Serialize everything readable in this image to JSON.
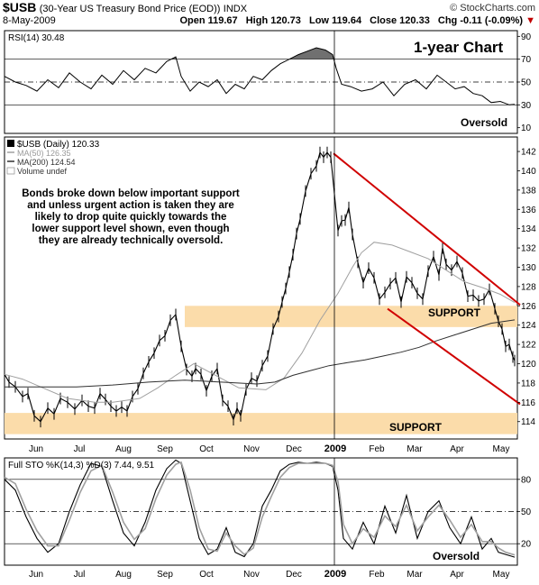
{
  "header": {
    "symbol": "$USB",
    "description": "(30-Year US Treasury Bond Price (EOD))",
    "exchange": "INDX",
    "credit": "© StockCharts.com",
    "date": "8-May-2009",
    "open_label": "Open",
    "open": "119.67",
    "high_label": "High",
    "high": "120.73",
    "low_label": "Low",
    "low": "119.64",
    "close_label": "Close",
    "close": "120.33",
    "chg_label": "Chg",
    "chg": "-0.11 (-0.09%)",
    "chg_arrow": "▼"
  },
  "rsi_panel": {
    "legend": "RSI(14) 30.48",
    "chart_title": "1-year Chart",
    "annotation": "Oversold",
    "ticks": [
      "90",
      "70",
      "50",
      "30",
      "10"
    ]
  },
  "price_panel": {
    "legend_symbol": "$USB (Daily) 120.33",
    "legend_ma50": "MA(50) 126.35",
    "legend_ma200": "MA(200) 124.54",
    "legend_volume": "Volume undef",
    "comment_lines": [
      "Bonds broke down below important support",
      "and unless urgent action is taken they are",
      "likely to drop quite quickly towards the",
      "lower support level shown, even though",
      "they are already technically oversold."
    ],
    "support_upper_label": "SUPPORT",
    "support_lower_label": "SUPPORT"
  },
  "sto_panel": {
    "legend": "Full STO %K(14,3) %D(3) 7.44, 9.51",
    "annotation": "Oversold",
    "ticks": [
      "80",
      "50",
      "20"
    ]
  },
  "colors": {
    "price": "#000000",
    "ma50": "#a0a0a0",
    "ma200": "#303030",
    "channel": "#d00000",
    "support_band": "#fbdcaa",
    "rsi_fill": "#707070",
    "sto_d": "#a0a0a0"
  },
  "chart_data": {
    "type": "line",
    "title": "$USB (30-Year US Treasury Bond Price (EOD)) INDX",
    "x_labels": [
      "Jun",
      "Jul",
      "Aug",
      "Sep",
      "Oct",
      "Nov",
      "Dec",
      "2009",
      "Feb",
      "Mar",
      "Apr",
      "May"
    ],
    "price_axis": {
      "ticks": [
        114,
        116,
        118,
        120,
        122,
        124,
        126,
        128,
        130,
        132,
        134,
        136,
        138,
        140,
        142
      ],
      "ylim": [
        112.2,
        143.5
      ]
    },
    "rsi_axis": {
      "ticks": [
        10,
        30,
        50,
        70,
        90
      ],
      "ylim": [
        5,
        95
      ]
    },
    "sto_axis": {
      "ticks": [
        20,
        50,
        80
      ],
      "ylim": [
        0,
        100
      ]
    },
    "series": [
      {
        "name": "$USB (Daily)",
        "panel": "price",
        "x": [
          0,
          5,
          12,
          20,
          26,
          33,
          40,
          48,
          55,
          62,
          70,
          78,
          86,
          93,
          100,
          106,
          112,
          118,
          124,
          130,
          136,
          142,
          148,
          154,
          160,
          166,
          172,
          178,
          184,
          190,
          196,
          202,
          208,
          212,
          218,
          224,
          230,
          236,
          242,
          248,
          254,
          258,
          262,
          268,
          274,
          280,
          286,
          292,
          298,
          304,
          308,
          312,
          316,
          320,
          324,
          328,
          334,
          340,
          346,
          350,
          354,
          358,
          362,
          366,
          370,
          374,
          378,
          382,
          386,
          392,
          398,
          404,
          410,
          416,
          422,
          428,
          434,
          440,
          446,
          452,
          458,
          464,
          470,
          476,
          482,
          486,
          490,
          496,
          502,
          508,
          514,
          520,
          526,
          532,
          538,
          544,
          548,
          552,
          556,
          560,
          564,
          566
        ],
        "values": [
          118.9,
          118.1,
          117.6,
          116.6,
          116.9,
          114.6,
          114.0,
          115.4,
          114.8,
          116.4,
          116.0,
          115.3,
          116.2,
          115.6,
          115.4,
          116.9,
          116.3,
          115.6,
          115.1,
          115.5,
          115.1,
          116.6,
          117.4,
          119.0,
          120.2,
          121.1,
          122.4,
          122.9,
          124.5,
          125.1,
          121.8,
          119.4,
          118.7,
          119.5,
          118.9,
          117.2,
          118.7,
          119.5,
          116.2,
          115.6,
          114.2,
          115.4,
          114.6,
          117.3,
          118.5,
          118.2,
          119.8,
          120.8,
          123.6,
          124.9,
          126.4,
          127.8,
          129.5,
          131.3,
          133.5,
          135.0,
          137.9,
          139.7,
          140.5,
          141.9,
          141.4,
          141.9,
          141.4,
          137.6,
          133.8,
          134.8,
          134.9,
          136.2,
          133.4,
          130.5,
          128.4,
          129.9,
          128.9,
          126.7,
          127.4,
          128.3,
          128.9,
          126.4,
          129.0,
          128.4,
          127.3,
          126.7,
          129.6,
          131.1,
          129.2,
          132.0,
          130.3,
          129.7,
          130.6,
          129.4,
          127.0,
          127.1,
          126.5,
          126.7,
          127.7,
          125.7,
          124.4,
          123.6,
          121.8,
          122.0,
          120.7,
          120.33
        ]
      },
      {
        "name": "MA(50)",
        "panel": "price",
        "x": [
          0,
          20,
          40,
          70,
          100,
          120,
          150,
          170,
          190,
          210,
          230,
          260,
          290,
          310,
          330,
          350,
          370,
          386,
          396,
          410,
          430,
          450,
          470,
          490,
          510,
          530,
          550,
          566
        ],
        "values": [
          118.9,
          118.4,
          117.6,
          116.4,
          116.0,
          116.0,
          116.4,
          117.5,
          118.8,
          120.0,
          119.0,
          117.5,
          117.3,
          118.5,
          121.1,
          124.5,
          127.3,
          130.0,
          131.5,
          132.6,
          132.3,
          131.6,
          130.9,
          129.7,
          128.5,
          127.9,
          127.2,
          126.35
        ]
      },
      {
        "name": "MA(200)",
        "panel": "price",
        "x": [
          0,
          40,
          80,
          120,
          160,
          200,
          240,
          280,
          300,
          320,
          340,
          360,
          380,
          400,
          420,
          440,
          460,
          480,
          500,
          520,
          540,
          566
        ],
        "values": [
          117.6,
          117.6,
          117.6,
          117.8,
          118.1,
          118.3,
          118.1,
          117.9,
          118.1,
          118.8,
          119.3,
          119.8,
          120.1,
          120.4,
          120.8,
          121.2,
          121.7,
          122.4,
          123.0,
          123.6,
          124.2,
          124.54
        ]
      },
      {
        "name": "RSI(14)",
        "panel": "rsi",
        "x": [
          0,
          12,
          24,
          36,
          48,
          60,
          72,
          84,
          96,
          108,
          120,
          132,
          144,
          156,
          168,
          180,
          190,
          196,
          206,
          216,
          226,
          236,
          246,
          256,
          266,
          276,
          286,
          296,
          306,
          316,
          326,
          336,
          346,
          356,
          364,
          368,
          374,
          384,
          396,
          408,
          420,
          432,
          444,
          456,
          468,
          480,
          490,
          500,
          510,
          520,
          530,
          540,
          550,
          560,
          566
        ],
        "values": [
          55,
          50,
          47,
          42,
          52,
          45,
          58,
          50,
          44,
          56,
          48,
          60,
          52,
          62,
          58,
          68,
          72,
          55,
          42,
          50,
          46,
          52,
          40,
          48,
          44,
          55,
          52,
          60,
          66,
          70,
          74,
          77,
          80,
          78,
          74,
          62,
          48,
          46,
          42,
          44,
          50,
          38,
          48,
          52,
          44,
          56,
          50,
          44,
          46,
          40,
          38,
          32,
          33,
          30,
          30.48
        ]
      },
      {
        "name": "Full STO %K",
        "panel": "sto",
        "x": [
          0,
          12,
          24,
          36,
          48,
          60,
          72,
          84,
          96,
          108,
          120,
          132,
          144,
          156,
          168,
          180,
          190,
          196,
          206,
          216,
          226,
          236,
          246,
          256,
          266,
          276,
          286,
          296,
          306,
          316,
          326,
          336,
          346,
          356,
          364,
          370,
          376,
          386,
          398,
          410,
          422,
          434,
          446,
          458,
          470,
          482,
          494,
          506,
          518,
          530,
          540,
          548,
          556,
          566
        ],
        "values": [
          80,
          70,
          45,
          25,
          12,
          20,
          50,
          75,
          95,
          92,
          60,
          30,
          18,
          40,
          70,
          90,
          98,
          95,
          60,
          25,
          10,
          15,
          35,
          12,
          8,
          20,
          55,
          70,
          88,
          94,
          96,
          95,
          96,
          95,
          92,
          70,
          25,
          15,
          40,
          20,
          55,
          30,
          65,
          25,
          50,
          60,
          35,
          20,
          45,
          15,
          25,
          12,
          10,
          7.44
        ]
      },
      {
        "name": "Full STO %D",
        "panel": "sto",
        "x": [
          0,
          12,
          24,
          36,
          48,
          60,
          72,
          84,
          96,
          108,
          120,
          132,
          144,
          156,
          168,
          180,
          190,
          196,
          206,
          216,
          226,
          236,
          246,
          256,
          266,
          276,
          286,
          296,
          306,
          316,
          326,
          336,
          346,
          356,
          364,
          370,
          376,
          386,
          398,
          410,
          422,
          434,
          446,
          458,
          470,
          482,
          494,
          506,
          518,
          530,
          540,
          548,
          556,
          566
        ],
        "values": [
          82,
          76,
          52,
          32,
          18,
          18,
          42,
          68,
          88,
          93,
          68,
          40,
          24,
          34,
          62,
          84,
          94,
          96,
          70,
          35,
          15,
          13,
          30,
          18,
          10,
          16,
          45,
          64,
          82,
          91,
          95,
          95,
          95,
          95,
          93,
          78,
          38,
          20,
          34,
          26,
          46,
          36,
          56,
          32,
          45,
          56,
          42,
          26,
          38,
          22,
          22,
          16,
          12,
          9.51
        ]
      }
    ],
    "overlays": {
      "support_bands": [
        {
          "from": 123.8,
          "to": 126.0,
          "x_start": 200,
          "x_end": 574
        },
        {
          "from": 112.7,
          "to": 114.9,
          "x_start": 0,
          "x_end": 574
        }
      ],
      "channel_lines": [
        {
          "x": [
            365,
            572
          ],
          "values": [
            141.8,
            126.1
          ]
        },
        {
          "x": [
            425,
            572
          ],
          "values": [
            125.7,
            115.8
          ]
        }
      ],
      "rsi_shaded_above": 70,
      "reference_lines": {
        "rsi": [
          70,
          50,
          30
        ],
        "sto": [
          80,
          50,
          20
        ]
      }
    },
    "legend_placement": "top-left",
    "grid": false
  }
}
